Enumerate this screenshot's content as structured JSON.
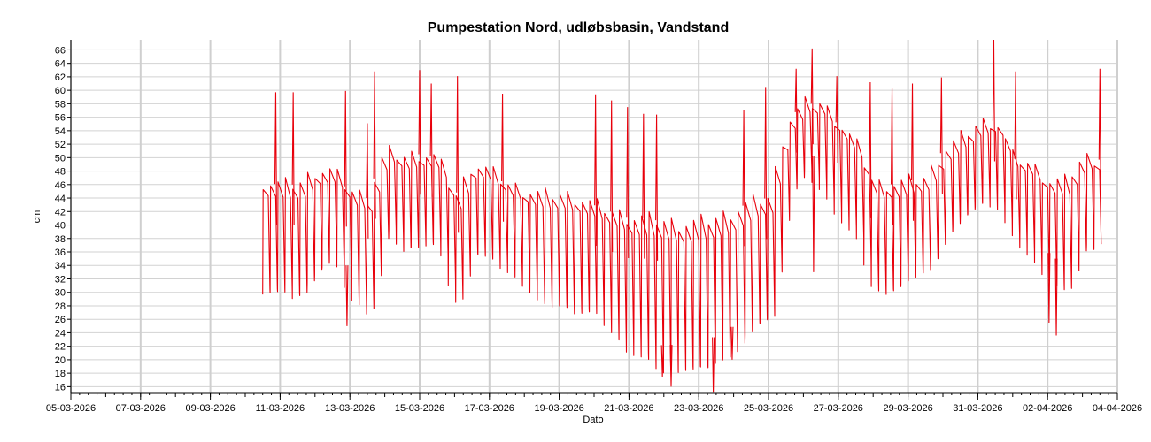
{
  "chart_data": {
    "type": "line",
    "title": "Pumpestation Nord, udløbsbasin, Vandstand",
    "xlabel": "Dato",
    "ylabel": "cm",
    "x_tick_labels": [
      "05-03-2026",
      "07-03-2026",
      "09-03-2026",
      "11-03-2026",
      "13-03-2026",
      "15-03-2026",
      "17-03-2026",
      "19-03-2026",
      "21-03-2026",
      "23-03-2026",
      "25-03-2026",
      "27-03-2026",
      "29-03-2026",
      "31-03-2026",
      "02-04-2026",
      "04-04-2026"
    ],
    "y_ticks": [
      16,
      18,
      20,
      22,
      24,
      26,
      28,
      30,
      32,
      34,
      36,
      38,
      40,
      42,
      44,
      46,
      48,
      50,
      52,
      54,
      56,
      58,
      60,
      62,
      64,
      66
    ],
    "xlim": [
      "05-03-2026",
      "04-04-2026"
    ],
    "ylim": [
      15,
      67.5
    ],
    "grid": true,
    "legend": "none",
    "series": [
      {
        "color": "#e8000b",
        "points": [
          [
            "10-03-2026 12:00",
            30
          ],
          [
            "11-03-2026 00:00",
            30
          ],
          [
            "11-03-2026 12:00",
            29
          ],
          [
            "12-03-2026 00:00",
            33
          ],
          [
            "12-03-2026 12:00",
            35
          ],
          [
            "13-03-2026 00:00",
            29
          ],
          [
            "13-03-2026 12:00",
            27
          ],
          [
            "14-03-2026 00:00",
            40
          ],
          [
            "14-03-2026 12:00",
            36
          ],
          [
            "15-03-2026 00:00",
            37
          ],
          [
            "15-03-2026 12:00",
            37
          ],
          [
            "16-03-2026 00:00",
            28
          ],
          [
            "16-03-2026 12:00",
            36
          ],
          [
            "17-03-2026 00:00",
            35
          ],
          [
            "17-03-2026 12:00",
            33
          ],
          [
            "18-03-2026 00:00",
            31
          ],
          [
            "18-03-2026 12:00",
            28
          ],
          [
            "19-03-2026 00:00",
            28
          ],
          [
            "19-03-2026 12:00",
            27
          ],
          [
            "20-03-2026 00:00",
            27
          ],
          [
            "20-03-2026 12:00",
            24
          ],
          [
            "21-03-2026 00:00",
            21
          ],
          [
            "21-03-2026 12:00",
            20
          ],
          [
            "22-03-2026 00:00",
            18
          ],
          [
            "22-03-2026 12:00",
            18.5
          ],
          [
            "23-03-2026 00:00",
            18.5
          ],
          [
            "23-03-2026 12:00",
            19.5
          ],
          [
            "24-03-2026 00:00",
            21
          ],
          [
            "24-03-2026 12:00",
            25
          ],
          [
            "25-03-2026 00:00",
            26
          ],
          [
            "25-03-2026 12:00",
            44
          ],
          [
            "26-03-2026 00:00",
            48
          ],
          [
            "26-03-2026 12:00",
            45
          ],
          [
            "27-03-2026 00:00",
            41
          ],
          [
            "27-03-2026 12:00",
            38
          ],
          [
            "28-03-2026 00:00",
            30
          ],
          [
            "28-03-2026 12:00",
            30
          ],
          [
            "29-03-2026 00:00",
            32
          ],
          [
            "29-03-2026 12:00",
            33
          ],
          [
            "30-03-2026 00:00",
            38
          ],
          [
            "30-03-2026 12:00",
            41
          ],
          [
            "31-03-2026 00:00",
            43
          ],
          [
            "31-03-2026 12:00",
            43
          ],
          [
            "01-04-2026 00:00",
            38
          ],
          [
            "01-04-2026 12:00",
            35
          ],
          [
            "02-04-2026 00:00",
            32
          ],
          [
            "02-04-2026 12:00",
            30
          ],
          [
            "03-04-2026 00:00",
            37
          ],
          [
            "03-04-2026 12:00",
            36.5
          ]
        ],
        "peaks": [
          [
            "10-03-2026 12:00",
            46.3
          ],
          [
            "11-03-2026 00:00",
            46
          ],
          [
            "11-03-2026 12:00",
            46
          ],
          [
            "12-03-2026 00:00",
            48
          ],
          [
            "12-03-2026 12:00",
            48
          ],
          [
            "13-03-2026 00:00",
            45
          ],
          [
            "13-03-2026 12:00",
            44
          ],
          [
            "14-03-2026 00:00",
            51
          ],
          [
            "14-03-2026 12:00",
            50
          ],
          [
            "15-03-2026 00:00",
            50.5
          ],
          [
            "15-03-2026 12:00",
            50
          ],
          [
            "16-03-2026 00:00",
            44
          ],
          [
            "16-03-2026 12:00",
            49
          ],
          [
            "17-03-2026 00:00",
            48
          ],
          [
            "17-03-2026 12:00",
            46
          ],
          [
            "18-03-2026 00:00",
            45
          ],
          [
            "18-03-2026 12:00",
            44.5
          ],
          [
            "19-03-2026 00:00",
            44.5
          ],
          [
            "19-03-2026 12:00",
            44
          ],
          [
            "20-03-2026 00:00",
            43
          ],
          [
            "20-03-2026 12:00",
            42
          ],
          [
            "21-03-2026 00:00",
            41
          ],
          [
            "21-03-2026 12:00",
            41
          ],
          [
            "22-03-2026 00:00",
            40.5
          ],
          [
            "22-03-2026 12:00",
            40
          ],
          [
            "23-03-2026 00:00",
            40.5
          ],
          [
            "23-03-2026 12:00",
            41
          ],
          [
            "24-03-2026 00:00",
            42
          ],
          [
            "24-03-2026 12:00",
            43.5
          ],
          [
            "25-03-2026 00:00",
            44
          ],
          [
            "25-03-2026 12:00",
            55
          ],
          [
            "26-03-2026 00:00",
            58
          ],
          [
            "26-03-2026 12:00",
            58
          ],
          [
            "27-03-2026 00:00",
            55
          ],
          [
            "27-03-2026 12:00",
            52
          ],
          [
            "28-03-2026 00:00",
            46
          ],
          [
            "28-03-2026 12:00",
            46
          ],
          [
            "29-03-2026 00:00",
            46.5
          ],
          [
            "29-03-2026 12:00",
            47
          ],
          [
            "30-03-2026 00:00",
            51
          ],
          [
            "30-03-2026 12:00",
            53
          ],
          [
            "31-03-2026 00:00",
            55
          ],
          [
            "31-03-2026 12:00",
            55.5
          ],
          [
            "01-04-2026 00:00",
            50
          ],
          [
            "01-04-2026 12:00",
            49
          ],
          [
            "02-04-2026 00:00",
            46.5
          ],
          [
            "02-04-2026 12:00",
            46.5
          ],
          [
            "03-04-2026 00:00",
            50
          ],
          [
            "03-04-2026 12:00",
            49.7
          ]
        ],
        "spikes": [
          [
            "10-03-2026 21:00",
            59.7
          ],
          [
            "11-03-2026 09:00",
            59.7
          ],
          [
            "12-03-2026 21:00",
            59.9
          ],
          [
            "13-03-2026 12:00",
            55.1
          ],
          [
            "13-03-2026 17:00",
            62.8
          ],
          [
            "15-03-2026 00:00",
            63
          ],
          [
            "15-03-2026 08:00",
            61
          ],
          [
            "16-03-2026 02:00",
            62.1
          ],
          [
            "17-03-2026 09:00",
            59.5
          ],
          [
            "20-03-2026 01:00",
            59.4
          ],
          [
            "20-03-2026 12:00",
            58.5
          ],
          [
            "20-03-2026 23:00",
            57.5
          ],
          [
            "21-03-2026 10:00",
            56.5
          ],
          [
            "21-03-2026 19:00",
            56.4
          ],
          [
            "24-03-2026 07:00",
            57
          ],
          [
            "24-03-2026 22:00",
            60.5
          ],
          [
            "25-03-2026 19:00",
            63.2
          ],
          [
            "26-03-2026 06:00",
            66.2
          ],
          [
            "26-03-2026 23:00",
            62.1
          ],
          [
            "27-03-2026 22:00",
            61.2
          ],
          [
            "28-03-2026 13:00",
            60.3
          ],
          [
            "29-03-2026 03:00",
            61
          ],
          [
            "29-03-2026 23:00",
            61.9
          ],
          [
            "31-03-2026 11:00",
            67.5
          ],
          [
            "01-04-2026 02:00",
            62.8
          ],
          [
            "03-04-2026 12:00",
            63.2
          ]
        ],
        "dips": [
          [
            "12-03-2026 22:00",
            25
          ],
          [
            "21-03-2026 23:00",
            17.5
          ],
          [
            "22-03-2026 05:00",
            16
          ],
          [
            "23-03-2026 10:00",
            15.1
          ],
          [
            "23-03-2026 23:00",
            20
          ],
          [
            "26-03-2026 07:00",
            33
          ],
          [
            "02-04-2026 01:00",
            25.5
          ],
          [
            "02-04-2026 06:00",
            23.6
          ]
        ]
      }
    ]
  }
}
